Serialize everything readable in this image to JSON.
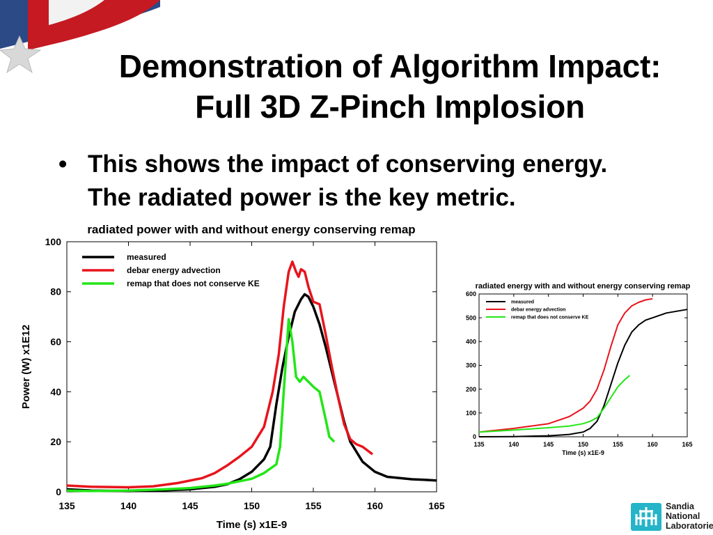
{
  "slide": {
    "title_line1": "Demonstration of Algorithm Impact:",
    "title_line2": "Full 3D Z-Pinch Implosion",
    "bullet_line1": "This shows the impact of conserving energy.",
    "bullet_line2": "The radiated power is the key metric.",
    "bullet_symbol": "•"
  },
  "logo": {
    "line1": "Sandia",
    "line2": "National",
    "line3": "Laboratories"
  },
  "colors": {
    "measured": "#000000",
    "debar": "#e8141c",
    "remap": "#22e616",
    "logo": "#25b4c8"
  },
  "chart_data": [
    {
      "type": "line",
      "title": "radiated power with and without energy conserving remap",
      "xlabel": "Time  (s) x1E-9",
      "ylabel": "Power  (W) x1E12",
      "xlim": [
        135,
        165
      ],
      "ylim": [
        0,
        100
      ],
      "xticks": [
        135,
        140,
        145,
        150,
        155,
        160,
        165
      ],
      "yticks": [
        0,
        20,
        40,
        60,
        80,
        100
      ],
      "legend_position": "top-left",
      "grid": false,
      "series": [
        {
          "name": "measured",
          "color": "#000000",
          "x": [
            135,
            137,
            140,
            143,
            145,
            147,
            148,
            149,
            150,
            151,
            151.5,
            152,
            152.5,
            153,
            153.5,
            154,
            154.3,
            154.6,
            155,
            155.5,
            156,
            156.5,
            157,
            157.5,
            158,
            159,
            160,
            161,
            162,
            163,
            164,
            165
          ],
          "y": [
            1,
            0.5,
            0.3,
            0.6,
            1,
            2,
            3,
            5,
            8,
            13,
            18,
            35,
            50,
            62,
            72,
            77,
            79,
            78,
            74,
            67,
            58,
            48,
            38,
            28,
            20,
            12,
            8,
            6,
            5.5,
            5,
            4.8,
            4.5
          ]
        },
        {
          "name": "debar energy advection",
          "color": "#e8141c",
          "x": [
            135,
            137,
            140,
            142,
            144,
            146,
            147,
            148,
            149,
            150,
            151,
            151.7,
            152.2,
            152.6,
            153,
            153.3,
            153.6,
            153.8,
            154,
            154.3,
            154.6,
            155,
            155.5,
            156,
            156.5,
            157,
            157.5,
            158,
            158.5,
            159,
            159.8
          ],
          "y": [
            2.5,
            2,
            1.8,
            2.2,
            3.5,
            5.5,
            7.5,
            10.5,
            14,
            18,
            26,
            40,
            55,
            74,
            88,
            92,
            88,
            86,
            89,
            88,
            82,
            76,
            75,
            63,
            50,
            38,
            27,
            21,
            19,
            18,
            15
          ]
        },
        {
          "name": "remap that does not conserve KE",
          "color": "#22e616",
          "x": [
            135,
            137,
            140,
            143,
            145,
            147,
            148,
            149,
            150,
            151,
            152,
            152.3,
            152.6,
            153,
            153.3,
            153.6,
            153.9,
            154.2,
            154.6,
            155,
            155.5,
            156,
            156.3,
            156.7
          ],
          "y": [
            0.5,
            0.3,
            0.5,
            1,
            1.5,
            2.5,
            3.2,
            4.2,
            5.2,
            7.5,
            11,
            18,
            40,
            69,
            60,
            46,
            44,
            46,
            44,
            42,
            40,
            29,
            22,
            20
          ]
        }
      ]
    },
    {
      "type": "line",
      "title": "radiated energy with and without energy conserving remap",
      "xlabel": "Time  (s) x1E-9",
      "ylabel": "",
      "xlim": [
        135,
        165
      ],
      "ylim": [
        0,
        600
      ],
      "xticks": [
        135,
        140,
        145,
        150,
        155,
        160,
        165
      ],
      "yticks": [
        0,
        100,
        200,
        300,
        400,
        500,
        600
      ],
      "legend_position": "top-left",
      "grid": false,
      "series": [
        {
          "name": "measured",
          "color": "#000000",
          "x": [
            135,
            140,
            145,
            148,
            150,
            151,
            152,
            153,
            154,
            155,
            156,
            157,
            158,
            159,
            160,
            162,
            165
          ],
          "y": [
            0,
            1,
            4,
            10,
            20,
            35,
            65,
            130,
            220,
            310,
            385,
            440,
            470,
            490,
            500,
            520,
            535
          ]
        },
        {
          "name": "debar energy advection",
          "color": "#e8141c",
          "x": [
            135,
            140,
            145,
            148,
            150,
            151,
            152,
            153,
            154,
            155,
            156,
            157,
            158,
            159,
            160
          ],
          "y": [
            20,
            35,
            55,
            85,
            120,
            150,
            200,
            280,
            380,
            470,
            520,
            550,
            565,
            575,
            580
          ]
        },
        {
          "name": "remap that does not conserve KE",
          "color": "#22e616",
          "x": [
            135,
            140,
            145,
            148,
            150,
            151,
            152,
            153,
            154,
            155,
            156,
            156.7
          ],
          "y": [
            20,
            28,
            38,
            45,
            55,
            65,
            80,
            120,
            165,
            210,
            240,
            258
          ]
        }
      ]
    }
  ]
}
